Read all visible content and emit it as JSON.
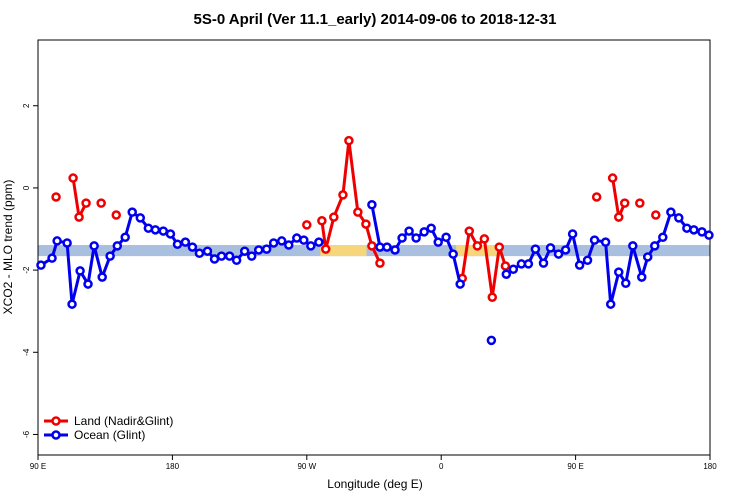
{
  "chart_data": {
    "type": "line",
    "title": "5S-0 April (Ver 11.1_early)   2014-09-06 to 2018-12-31",
    "x_label": "Longitude (deg E)",
    "y_label": "XCO2 - MLO trend (ppm)",
    "xlim": [
      90,
      540
    ],
    "xticks": [
      {
        "value": 90,
        "label": "90 E"
      },
      180,
      {
        "value": 270,
        "label": "90 W"
      },
      {
        "value": 360,
        "label": "0"
      },
      {
        "value": 450,
        "label": "90 E"
      },
      {
        "value": 540,
        "label": "180"
      }
    ],
    "ylim": [
      -6.5,
      3.6
    ],
    "yticks": [
      -6,
      -4,
      -2,
      0,
      2
    ],
    "legend": "bottom-left",
    "band": {
      "range": [
        -1.39,
        -1.66
      ],
      "color": "#a8bfdf"
    },
    "band_highlights": [
      {
        "x": [
          279,
          310
        ],
        "color": "#f5d67a"
      },
      {
        "x": [
          370,
          400
        ],
        "color": "#f5d67a"
      }
    ],
    "series": [
      {
        "name": "Land (Nadir&Glint)",
        "color": "#ee0000",
        "x": [
          102.1,
          null,
          113.5,
          117.5,
          122.2,
          null,
          132.3,
          null,
          142.4,
          null,
          270.0,
          null,
          280.1,
          282.7,
          288.1,
          294.2,
          298.2,
          304.2,
          309.6,
          313.6,
          319.0,
          null,
          374.1,
          378.8,
          384.2,
          388.9,
          394.2,
          398.9,
          403.0,
          null,
          464.1,
          null,
          474.8,
          478.9,
          482.9,
          null,
          493.0,
          null,
          503.7
        ],
        "values": [
          -0.22,
          null,
          0.24,
          -0.71,
          -0.37,
          null,
          -0.37,
          null,
          -0.66,
          null,
          -0.9,
          null,
          -0.8,
          -1.49,
          -0.71,
          -0.17,
          1.15,
          -0.59,
          -0.88,
          -1.41,
          -1.83,
          null,
          -2.2,
          -1.05,
          -1.41,
          -1.24,
          -2.66,
          -1.44,
          -1.9,
          null,
          -0.22,
          null,
          0.24,
          -0.71,
          -0.37,
          null,
          -0.37,
          null,
          -0.66
        ]
      },
      {
        "name": "Ocean (Glint)",
        "color": "#0000ee",
        "x": [
          92.0,
          99.4,
          102.8,
          109.5,
          112.8,
          118.2,
          123.5,
          127.6,
          133.0,
          138.3,
          143.1,
          148.4,
          153.1,
          158.5,
          163.9,
          168.6,
          173.9,
          178.7,
          183.4,
          188.7,
          193.4,
          198.1,
          203.5,
          208.2,
          212.9,
          218.3,
          223.0,
          228.4,
          233.1,
          237.8,
          243.1,
          247.8,
          253.2,
          257.9,
          263.3,
          268.0,
          272.7,
          278.1,
          null,
          313.6,
          319.0,
          323.7,
          329.1,
          333.8,
          338.5,
          343.2,
          348.6,
          353.3,
          358.0,
          363.3,
          368.0,
          372.7,
          null,
          393.6,
          null,
          403.6,
          408.3,
          413.7,
          418.4,
          423.1,
          428.5,
          433.2,
          438.6,
          443.3,
          448.0,
          452.7,
          458.0,
          462.7,
          470.1,
          473.5,
          478.9,
          483.6,
          488.3,
          494.3,
          498.3,
          503.0,
          508.4,
          513.8,
          519.1,
          524.5,
          529.2,
          534.6,
          539.3
        ],
        "values": [
          -1.88,
          -1.71,
          -1.29,
          -1.34,
          -2.83,
          -2.02,
          -2.34,
          -1.41,
          -2.17,
          -1.66,
          -1.41,
          -1.2,
          -0.59,
          -0.73,
          -0.98,
          -1.02,
          -1.05,
          -1.12,
          -1.37,
          -1.32,
          -1.44,
          -1.59,
          -1.54,
          -1.73,
          -1.66,
          -1.66,
          -1.76,
          -1.54,
          -1.66,
          -1.51,
          -1.49,
          -1.34,
          -1.29,
          -1.39,
          -1.22,
          -1.27,
          -1.41,
          -1.32,
          null,
          -0.41,
          -1.44,
          -1.44,
          -1.51,
          -1.22,
          -1.05,
          -1.22,
          -1.07,
          -0.98,
          -1.32,
          -1.2,
          -1.61,
          -2.34,
          null,
          -3.71,
          null,
          -2.1,
          -1.98,
          -1.85,
          -1.85,
          -1.49,
          -1.83,
          -1.46,
          -1.61,
          -1.51,
          -1.12,
          -1.88,
          -1.76,
          -1.27,
          -1.32,
          -2.83,
          -2.05,
          -2.32,
          -1.41,
          -2.17,
          -1.68,
          -1.41,
          -1.2,
          -0.59,
          -0.73,
          -0.98,
          -1.02,
          -1.07,
          -1.15
        ]
      }
    ]
  }
}
